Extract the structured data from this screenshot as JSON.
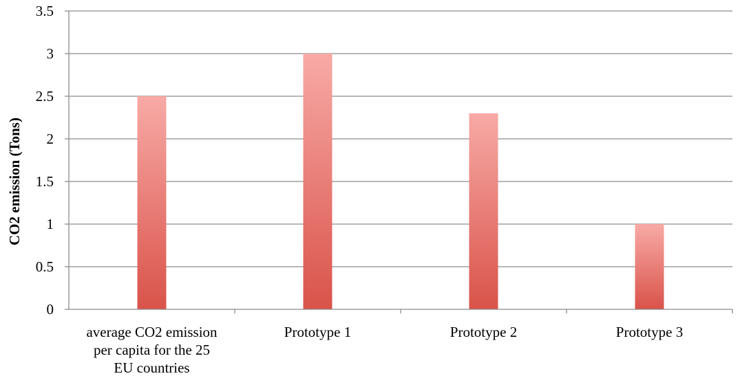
{
  "chart_data": {
    "type": "bar",
    "title": "",
    "xlabel": "",
    "ylabel": "CO2 emission (Tons)",
    "ylim": [
      0,
      3.5
    ],
    "yticks": [
      "0",
      "0.5",
      "1",
      "1.5",
      "2",
      "2.5",
      "3",
      "3.5"
    ],
    "grid": true,
    "legend": "none",
    "categories": [
      [
        "average CO2 emission",
        "per capita for the 25",
        "EU countries"
      ],
      [
        "Prototype 1"
      ],
      [
        "Prototype 2"
      ],
      [
        "Prototype 3"
      ]
    ],
    "values": [
      2.5,
      3.0,
      2.3,
      1.0
    ],
    "colors": {
      "bar_top": "#f8aaa6",
      "bar_bottom": "#d9534a",
      "grid": "#8c8c8c",
      "axis": "#8c8c8c"
    }
  }
}
